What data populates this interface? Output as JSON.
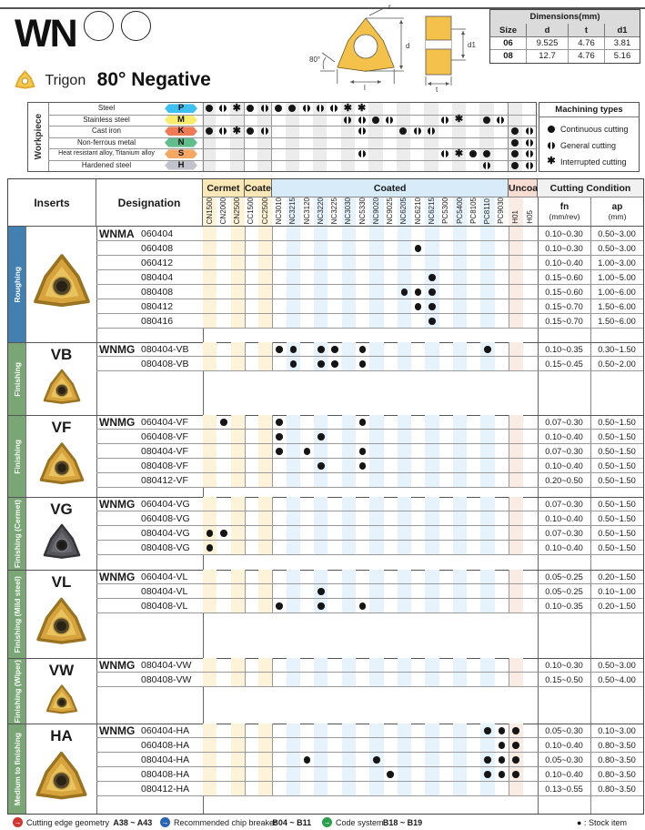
{
  "header": {
    "code": "WN",
    "shape_label": "Trigon",
    "title": "80° Negative",
    "dimensions": {
      "title": "Dimensions(mm)",
      "columns": [
        "Size",
        "d",
        "t",
        "d1"
      ],
      "rows": [
        [
          "06",
          "9.525",
          "4.76",
          "3.81"
        ],
        [
          "08",
          "12.7",
          "4.76",
          "5.16"
        ]
      ]
    },
    "drawing_labels": {
      "r": "r",
      "d": "d",
      "l": "l",
      "angle": "80°",
      "t": "t",
      "d1": "d1"
    }
  },
  "workpiece": {
    "label": "Workpiece",
    "rows": [
      {
        "material": "Steel",
        "code": "P",
        "color": "#3EC1F2",
        "dots": {
          "CN1500": "C",
          "CN2000": "G",
          "CN2500": "I",
          "CC1500": "C",
          "CC2500": "G",
          "NC3010": "C",
          "NC3215": "C",
          "NC3120": "G",
          "NC3220": "G",
          "NC3225": "G",
          "NC3030": "I",
          "NC5330": "I"
        }
      },
      {
        "material": "Stainless steel",
        "code": "M",
        "color": "#F8EC6C",
        "dots": {
          "NC3030": "G",
          "NC5330": "G",
          "NC9020": "C",
          "NC9025": "G",
          "PC5300": "G",
          "PC5400": "I",
          "PC8110": "C",
          "PC9030": "G"
        }
      },
      {
        "material": "Cast iron",
        "code": "K",
        "color": "#EE7B55",
        "dots": {
          "CN1500": "C",
          "CN2000": "G",
          "CN2500": "I",
          "CC1500": "C",
          "CC2500": "G",
          "NC5330": "G",
          "NC6205": "C",
          "NC6210": "G",
          "NC6215": "G",
          "H01": "C",
          "H05": "G"
        }
      },
      {
        "material": "Non-ferrous metal",
        "code": "N",
        "color": "#62BD8D",
        "dots": {
          "H01": "C",
          "H05": "G"
        }
      },
      {
        "material": "Heat resistant alloy, Titanium alloy",
        "code": "S",
        "color": "#F5A763",
        "dots": {
          "NC5330": "G",
          "PC5300": "G",
          "PC5400": "I",
          "PC8105": "C",
          "PC8110": "C",
          "H01": "C",
          "H05": "G"
        }
      },
      {
        "material": "Hardened steel",
        "code": "H",
        "color": "#C3C3CD",
        "dots": {
          "PC8110": "G",
          "H01": "C",
          "H05": "G"
        }
      }
    ],
    "machining_types": {
      "title": "Machining types",
      "items": [
        {
          "type": "C",
          "label": "Continuous cutting"
        },
        {
          "type": "G",
          "label": "General cutting"
        },
        {
          "type": "I",
          "label": "Interrupted cutting"
        }
      ]
    }
  },
  "insert_table": {
    "inserts_header": "Inserts",
    "designation_header": "Designation",
    "column_groups": [
      {
        "label": "Cermet",
        "header_bg": "#FBE8B6",
        "stripe": "#FDF3D9",
        "cols": [
          "CN1500",
          "CN2000",
          "CN2500"
        ]
      },
      {
        "label": "Coated",
        "header_bg": "#FBE8B6",
        "stripe": "#FDF3D9",
        "cols": [
          "CC1500",
          "CC2500"
        ]
      },
      {
        "label": "Coated",
        "header_bg": "#D7EBF8",
        "stripe": "#E7F3FC",
        "cols": [
          "NC3010",
          "NC3215",
          "NC3120",
          "NC3220",
          "NC3225",
          "NC3030",
          "NC5330",
          "NC9020",
          "NC9025",
          "NC6205",
          "NC6210",
          "NC6215",
          "PC5300",
          "PC5400",
          "PC8105",
          "PC8110",
          "PC9030"
        ]
      },
      {
        "label": "Uncoated",
        "header_bg": "#F9DCD2",
        "stripe": "#FBEBE5",
        "cols": [
          "H01",
          "H05"
        ]
      }
    ],
    "cutting_condition": {
      "label": "Cutting Condition",
      "fn": "fn",
      "fn_unit": "(mm/rev)",
      "ap": "ap",
      "ap_unit": "(mm)"
    },
    "groups": [
      {
        "code": "",
        "side": "Roughing",
        "side_color": "#4380B2",
        "prefix": "WNMA",
        "insert_style": "gold",
        "rows": [
          {
            "size": "060404",
            "dots": {},
            "fn": "0.10~0.30",
            "ap": "0.50~3.00"
          },
          {
            "size": "060408",
            "dots": {
              "NC6210": "C"
            },
            "fn": "0.10~0.30",
            "ap": "0.50~3.00"
          },
          {
            "size": "060412",
            "dots": {},
            "fn": "0.10~0.40",
            "ap": "1.00~3.00"
          },
          {
            "size": "080404",
            "dots": {
              "NC6215": "C"
            },
            "fn": "0.15~0.60",
            "ap": "1.00~5.00"
          },
          {
            "size": "080408",
            "dots": {
              "NC6205": "C",
              "NC6210": "C",
              "NC6215": "C"
            },
            "fn": "0.15~0.60",
            "ap": "1.00~6.00"
          },
          {
            "size": "080412",
            "dots": {
              "NC6210": "C",
              "NC6215": "C"
            },
            "fn": "0.15~0.70",
            "ap": "1.50~6.00"
          },
          {
            "size": "080416",
            "dots": {
              "NC6215": "C"
            },
            "fn": "0.15~0.70",
            "ap": "1.50~6.00"
          }
        ]
      },
      {
        "code": "VB",
        "side": "Finishing",
        "side_color": "#7AA575",
        "prefix": "WNMG",
        "insert_style": "gold",
        "rows": [
          {
            "size": "080404-VB",
            "dots": {
              "NC3010": "C",
              "NC3215": "C",
              "NC3220": "C",
              "NC3225": "C",
              "NC5330": "C",
              "PC8110": "C"
            },
            "fn": "0.10~0.35",
            "ap": "0.30~1.50"
          },
          {
            "size": "080408-VB",
            "dots": {
              "NC3215": "C",
              "NC3220": "C",
              "NC3225": "C",
              "NC5330": "C"
            },
            "fn": "0.15~0.45",
            "ap": "0.50~2.00"
          }
        ]
      },
      {
        "code": "VF",
        "side": "Finishing",
        "side_color": "#7AA575",
        "prefix": "WNMG",
        "insert_style": "gold",
        "rows": [
          {
            "size": "060404-VF",
            "dots": {
              "CN2000": "C",
              "NC3010": "C",
              "NC5330": "C"
            },
            "fn": "0.07~0.30",
            "ap": "0.50~1.50"
          },
          {
            "size": "060408-VF",
            "dots": {
              "NC3010": "C",
              "NC3220": "C"
            },
            "fn": "0.10~0.40",
            "ap": "0.50~1.50"
          },
          {
            "size": "080404-VF",
            "dots": {
              "NC3010": "C",
              "NC3120": "C",
              "NC5330": "C"
            },
            "fn": "0.07~0.30",
            "ap": "0.50~1.50"
          },
          {
            "size": "080408-VF",
            "dots": {
              "NC3220": "C",
              "NC5330": "C"
            },
            "fn": "0.10~0.40",
            "ap": "0.50~1.50"
          },
          {
            "size": "080412-VF",
            "dots": {},
            "fn": "0.20~0.50",
            "ap": "0.50~1.50"
          }
        ]
      },
      {
        "code": "VG",
        "side": "Finishing (Cermet)",
        "side_color": "#7AA575",
        "prefix": "WNMG",
        "insert_style": "dark",
        "rows": [
          {
            "size": "060404-VG",
            "dots": {},
            "fn": "0.07~0.30",
            "ap": "0.50~1.50"
          },
          {
            "size": "060408-VG",
            "dots": {},
            "fn": "0.10~0.40",
            "ap": "0.50~1.50"
          },
          {
            "size": "080404-VG",
            "dots": {
              "CN1500": "C",
              "CN2000": "C"
            },
            "fn": "0.07~0.30",
            "ap": "0.50~1.50"
          },
          {
            "size": "080408-VG",
            "dots": {
              "CN1500": "C"
            },
            "fn": "0.10~0.40",
            "ap": "0.50~1.50"
          }
        ]
      },
      {
        "code": "VL",
        "side": "Finishing (Mild steel)",
        "side_color": "#7AA575",
        "prefix": "WNMG",
        "insert_style": "gold",
        "rows": [
          {
            "size": "060404-VL",
            "dots": {},
            "fn": "0.05~0.25",
            "ap": "0.20~1.50"
          },
          {
            "size": "080404-VL",
            "dots": {
              "NC3220": "C"
            },
            "fn": "0.05~0.25",
            "ap": "0.10~1.00"
          },
          {
            "size": "080408-VL",
            "dots": {
              "NC3010": "C",
              "NC3220": "C",
              "NC5330": "C"
            },
            "fn": "0.10~0.35",
            "ap": "0.20~1.50"
          }
        ]
      },
      {
        "code": "VW",
        "side": "Finishing (Wiper)",
        "side_color": "#7AA575",
        "prefix": "WNMG",
        "insert_style": "gold",
        "rows": [
          {
            "size": "080404-VW",
            "dots": {},
            "fn": "0.10~0.30",
            "ap": "0.50~3.00"
          },
          {
            "size": "080408-VW",
            "dots": {},
            "fn": "0.15~0.50",
            "ap": "0.50~4.00"
          }
        ]
      },
      {
        "code": "HA",
        "side": "Medium to finishing",
        "side_color": "#7AA575",
        "prefix": "WNMG",
        "insert_style": "gold",
        "rows": [
          {
            "size": "060404-HA",
            "dots": {
              "PC8110": "C",
              "PC9030": "C",
              "H01": "C"
            },
            "fn": "0.05~0.30",
            "ap": "0.10~3.00"
          },
          {
            "size": "060408-HA",
            "dots": {
              "PC9030": "C",
              "H01": "C"
            },
            "fn": "0.10~0.40",
            "ap": "0.80~3.50"
          },
          {
            "size": "080404-HA",
            "dots": {
              "NC3120": "C",
              "NC9020": "C",
              "PC8110": "C",
              "PC9030": "C",
              "H01": "C"
            },
            "fn": "0.05~0.30",
            "ap": "0.80~3.50"
          },
          {
            "size": "080408-HA",
            "dots": {
              "NC9025": "C",
              "PC8110": "C",
              "PC9030": "C",
              "H01": "C"
            },
            "fn": "0.10~0.40",
            "ap": "0.80~3.50"
          },
          {
            "size": "080412-HA",
            "dots": {},
            "fn": "0.13~0.55",
            "ap": "0.80~3.50"
          }
        ]
      }
    ]
  },
  "footer": {
    "links": [
      {
        "label": "Cutting edge geometry",
        "range": "A38 ~ A43",
        "color": "#D23430"
      },
      {
        "label": "Recommended chip breaker",
        "range": "B04 ~ B11",
        "color": "#2A65B2"
      },
      {
        "label": "Code system",
        "range": "B18 ~ B19",
        "color": "#2B9E49"
      }
    ],
    "stock_note": "● : Stock item"
  }
}
